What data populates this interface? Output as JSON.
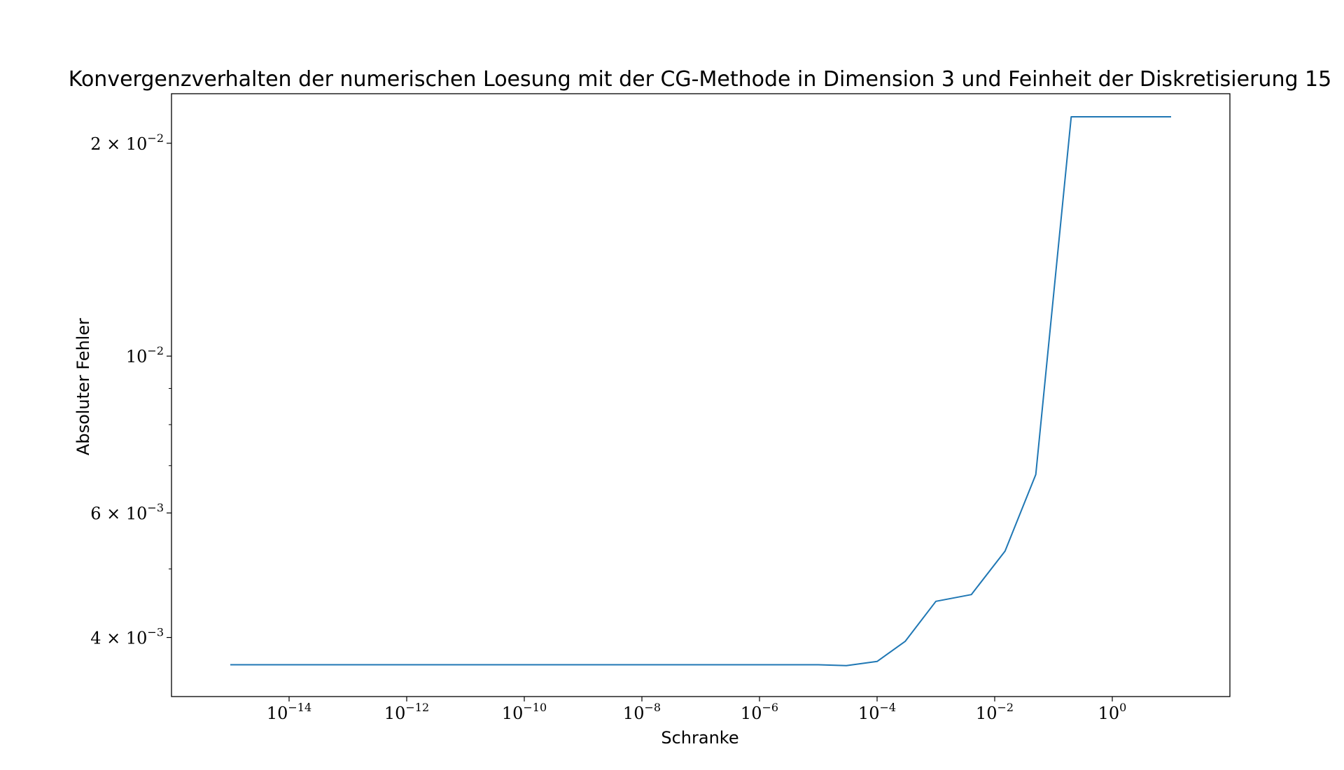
{
  "chart_data": {
    "type": "line",
    "title": "Konvergenzverhalten der numerischen Loesung mit der CG-Methode in Dimension 3 und Feinheit der Diskretisierung 15",
    "xlabel": "Schranke",
    "ylabel": "Absoluter Fehler",
    "xscale": "log",
    "yscale": "log",
    "xlim": [
      1e-16,
      100.0
    ],
    "ylim": [
      0.0033,
      0.0235
    ],
    "grid": false,
    "line_color": "#1f77b4",
    "x_ticks": [
      {
        "label_base": "10",
        "label_exp": "−14",
        "value": 1e-14
      },
      {
        "label_base": "10",
        "label_exp": "−12",
        "value": 1e-12
      },
      {
        "label_base": "10",
        "label_exp": "−10",
        "value": 1e-10
      },
      {
        "label_base": "10",
        "label_exp": "−8",
        "value": 1e-08
      },
      {
        "label_base": "10",
        "label_exp": "−6",
        "value": 1e-06
      },
      {
        "label_base": "10",
        "label_exp": "−4",
        "value": 0.0001
      },
      {
        "label_base": "10",
        "label_exp": "−2",
        "value": 0.01
      },
      {
        "label_base": "10",
        "label_exp": "0",
        "value": 1
      }
    ],
    "y_ticks": [
      {
        "label_base": "2 × 10",
        "label_exp": "−2",
        "value": 0.02
      },
      {
        "label_base": "10",
        "label_exp": "−2",
        "value": 0.01
      },
      {
        "label_base": "6 × 10",
        "label_exp": "−3",
        "value": 0.006
      },
      {
        "label_base": "4 × 10",
        "label_exp": "−3",
        "value": 0.004
      }
    ],
    "y_minor_ticks": [
      0.003,
      0.005,
      0.007,
      0.008,
      0.009
    ],
    "series": [
      {
        "x": [
          1e-15,
          1e-14,
          1e-13,
          1e-12,
          1e-11,
          1e-10,
          1e-09,
          1e-08,
          1e-07,
          1e-06,
          1e-05,
          3e-05,
          0.0001,
          0.0003,
          0.001,
          0.004,
          0.015,
          0.05,
          0.2,
          10
        ],
        "y": [
          0.00366,
          0.00366,
          0.00366,
          0.00366,
          0.00366,
          0.00366,
          0.00366,
          0.00366,
          0.00366,
          0.00366,
          0.00366,
          0.00365,
          0.0037,
          0.00395,
          0.0045,
          0.0046,
          0.0053,
          0.0068,
          0.0218,
          0.0218
        ]
      }
    ]
  }
}
